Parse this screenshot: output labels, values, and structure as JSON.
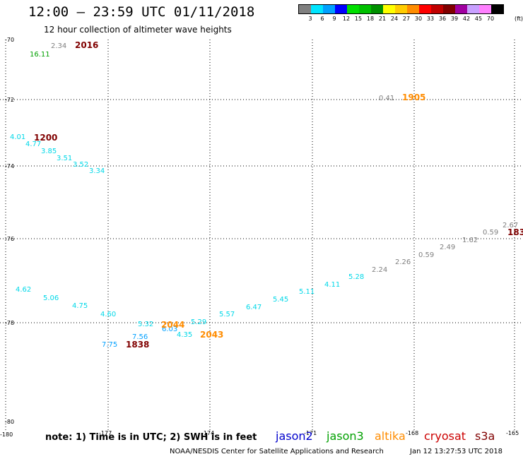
{
  "header": {
    "title": "12:00 – 23:59 UTC 01/11/2018",
    "subtitle": "12 hour collection of altimeter wave heights"
  },
  "colorbar": {
    "unit": "(ft)",
    "levels": [
      {
        "label": "3",
        "color": "#808080"
      },
      {
        "label": "6",
        "color": "#00e5ff"
      },
      {
        "label": "9",
        "color": "#00a0ff"
      },
      {
        "label": "12",
        "color": "#0000ff"
      },
      {
        "label": "15",
        "color": "#00e000"
      },
      {
        "label": "18",
        "color": "#00c000"
      },
      {
        "label": "21",
        "color": "#009000"
      },
      {
        "label": "24",
        "color": "#ffff00"
      },
      {
        "label": "27",
        "color": "#ffcc00"
      },
      {
        "label": "30",
        "color": "#ff8c00"
      },
      {
        "label": "33",
        "color": "#ff0000"
      },
      {
        "label": "36",
        "color": "#c00000"
      },
      {
        "label": "39",
        "color": "#800000"
      },
      {
        "label": "42",
        "color": "#a000a0"
      },
      {
        "label": "45",
        "color": "#c8a0ff"
      },
      {
        "label": "70",
        "color": "#ff80ff"
      },
      {
        "label": "",
        "color": "#000000"
      }
    ]
  },
  "axes": {
    "lat_labels": [
      "-70",
      "-72",
      "-74",
      "-76",
      "-78",
      "-80"
    ],
    "lon_labels": [
      "-180",
      "-177",
      "-174",
      "-171",
      "-168",
      "-165"
    ]
  },
  "wave_values": [
    {
      "text": "2.34",
      "color": "#808080"
    },
    {
      "text": "16.11",
      "color": "#00a000"
    },
    {
      "text": "0.41",
      "color": "#808080"
    },
    {
      "text": "4.01",
      "color": "#00d8e8"
    },
    {
      "text": "4.77",
      "color": "#00d8e8"
    },
    {
      "text": "3.85",
      "color": "#00d8e8"
    },
    {
      "text": "3.51",
      "color": "#00d8e8"
    },
    {
      "text": "3.52",
      "color": "#00d8e8"
    },
    {
      "text": "3.34",
      "color": "#00d8e8"
    },
    {
      "text": "2.67",
      "color": "#808080"
    },
    {
      "text": "0.59",
      "color": "#808080"
    },
    {
      "text": "1.62",
      "color": "#808080"
    },
    {
      "text": "2.49",
      "color": "#808080"
    },
    {
      "text": "0.59",
      "color": "#808080"
    },
    {
      "text": "2.26",
      "color": "#808080"
    },
    {
      "text": "2.24",
      "color": "#808080"
    },
    {
      "text": "5.28",
      "color": "#00d8e8"
    },
    {
      "text": "4.11",
      "color": "#00d8e8"
    },
    {
      "text": "5.11",
      "color": "#00d8e8"
    },
    {
      "text": "5.45",
      "color": "#00d8e8"
    },
    {
      "text": "6.47",
      "color": "#00d8e8"
    },
    {
      "text": "5.57",
      "color": "#00d8e8"
    },
    {
      "text": "5.29",
      "color": "#00d8e8"
    },
    {
      "text": "4.35",
      "color": "#00d8e8"
    },
    {
      "text": "6.03",
      "color": "#00a0ff"
    },
    {
      "text": "5.32",
      "color": "#00d8e8"
    },
    {
      "text": "7.56",
      "color": "#00a0ff"
    },
    {
      "text": "7.75",
      "color": "#00a0ff"
    },
    {
      "text": "4.60",
      "color": "#00d8e8"
    },
    {
      "text": "4.75",
      "color": "#00d8e8"
    },
    {
      "text": "5.06",
      "color": "#00d8e8"
    },
    {
      "text": "4.62",
      "color": "#00d8e8"
    }
  ],
  "pass_times": [
    {
      "text": "2016",
      "color": "#800000"
    },
    {
      "text": "1905",
      "color": "#ff8c00"
    },
    {
      "text": "1200",
      "color": "#800000"
    },
    {
      "text": "183",
      "color": "#800000"
    },
    {
      "text": "2044",
      "color": "#ff8c00"
    },
    {
      "text": "2043",
      "color": "#ff8c00"
    },
    {
      "text": "1838",
      "color": "#800000"
    }
  ],
  "footer": {
    "note": "note: 1) Time is in UTC; 2) SWH is in feet",
    "satellites": [
      {
        "name": "jason2",
        "color": "#0000cc"
      },
      {
        "name": "jason3",
        "color": "#00a000"
      },
      {
        "name": "altika",
        "color": "#ff8c00"
      },
      {
        "name": "cryosat",
        "color": "#cc0000"
      },
      {
        "name": "s3a",
        "color": "#800000"
      }
    ],
    "credit": "NOAA/NESDIS Center for Satellite Applications and Research",
    "timestamp": "Jan 12 13:27:53 UTC 2018"
  }
}
